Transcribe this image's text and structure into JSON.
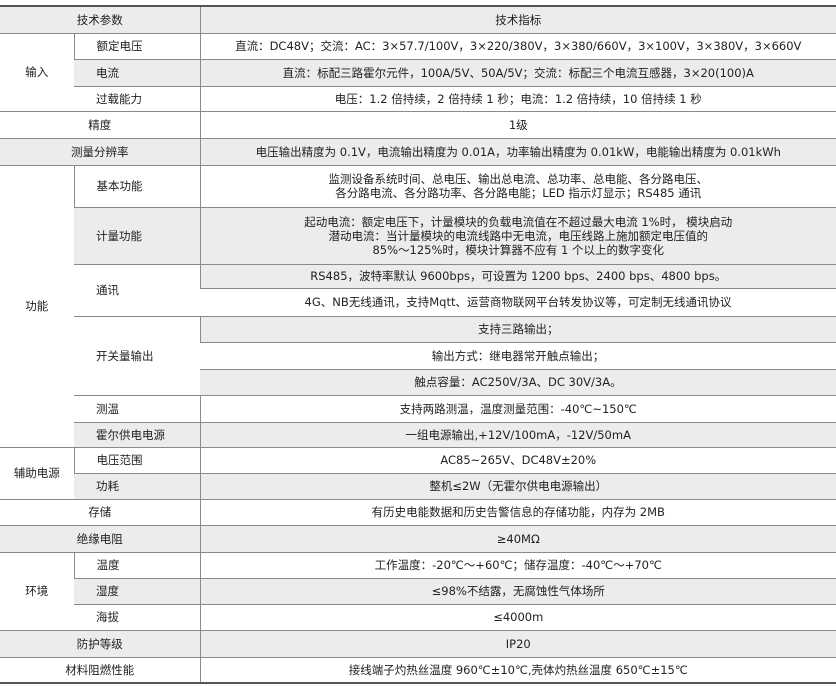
{
  "header": {
    "param": "技术参数",
    "spec": "技术指标"
  },
  "input": {
    "label": "输入",
    "rated_voltage": {
      "label": "额定电压",
      "value": "直流：DC48V；交流：AC：3×57.7/100V，3×220/380V，3×380/660V，3×100V，3×380V，3×660V"
    },
    "current": {
      "label": "电流",
      "value": "直流：标配三路霍尔元件，100A/5V、50A/5V；交流：标配三个电流互感器，3×20(100)A"
    },
    "overload": {
      "label": "过载能力",
      "value": "电压：1.2 倍持续，2 倍持续 1 秒；电流：1.2 倍持续，10 倍持续 1 秒"
    }
  },
  "accuracy": {
    "label": "精度",
    "value": "1级"
  },
  "resolution": {
    "label": "测量分辨率",
    "value": "电压输出精度为 0.1V，电流输出精度为 0.01A，功率输出精度为 0.01kW，电能输出精度为 0.01kWh"
  },
  "function": {
    "label": "功能",
    "basic": {
      "label": "基本功能",
      "lines": [
        "监测设备系统时间、总电压、输出总电流、总功率、总电能、各分路电压、",
        "各分路电流、各分路功率、各分路电能；LED 指示灯显示；RS485 通讯"
      ]
    },
    "metering": {
      "label": "计量功能",
      "lines": [
        "起动电流：额定电压下，计量模块的负载电流值在不超过最大电流 1%时， 模块启动",
        "潜动电流：当计量模块的电流线路中无电流，电压线路上施加额定电压值的",
        "85%～125%时，模块计算器不应有 1 个以上的数字变化"
      ]
    },
    "comm": {
      "label": "通讯",
      "values": [
        "RS485，波特率默认 9600bps，可设置为 1200 bps、2400 bps、4800 bps。",
        "4G、NB无线通讯，支持Mqtt、运营商物联网平台转发协议等，可定制无线通讯协议"
      ]
    },
    "switch_output": {
      "label": "开关量输出",
      "values": [
        "支持三路输出；",
        "输出方式：继电器常开触点输出；",
        "触点容量：AC250V/3A、DC 30V/3A。"
      ]
    },
    "temp_measure": {
      "label": "测温",
      "value": "支持两路测温，温度测量范围：-40℃~150℃"
    },
    "hall_power": {
      "label": "霍尔供电电源",
      "value": "一组电源输出,+12V/100mA，-12V/50mA"
    }
  },
  "aux_power": {
    "label": "辅助电源",
    "voltage_range": {
      "label": "电压范围",
      "value": "AC85~265V、DC48V±20%"
    },
    "consumption": {
      "label": "功耗",
      "value": "整机≤2W（无霍尔供电电源输出）"
    }
  },
  "storage": {
    "label": "存储",
    "value": "有历史电能数据和历史告警信息的存储功能，内存为 2MB"
  },
  "insulation": {
    "label": "绝缘电阻",
    "value": "≥40MΩ"
  },
  "environment": {
    "label": "环境",
    "temperature": {
      "label": "温度",
      "value": "工作温度：-20℃～+60℃；储存温度：-40℃～+70℃"
    },
    "humidity": {
      "label": "湿度",
      "value": "≤98%不结露，无腐蚀性气体场所"
    },
    "altitude": {
      "label": "海拔",
      "value": "≤4000m"
    }
  },
  "protection": {
    "label": "防护等级",
    "value": "IP20"
  },
  "flame": {
    "label": "材料阻燃性能",
    "value": "接线端子灼热丝温度 960℃±10℃,壳体灼热丝温度 650℃±15℃"
  }
}
